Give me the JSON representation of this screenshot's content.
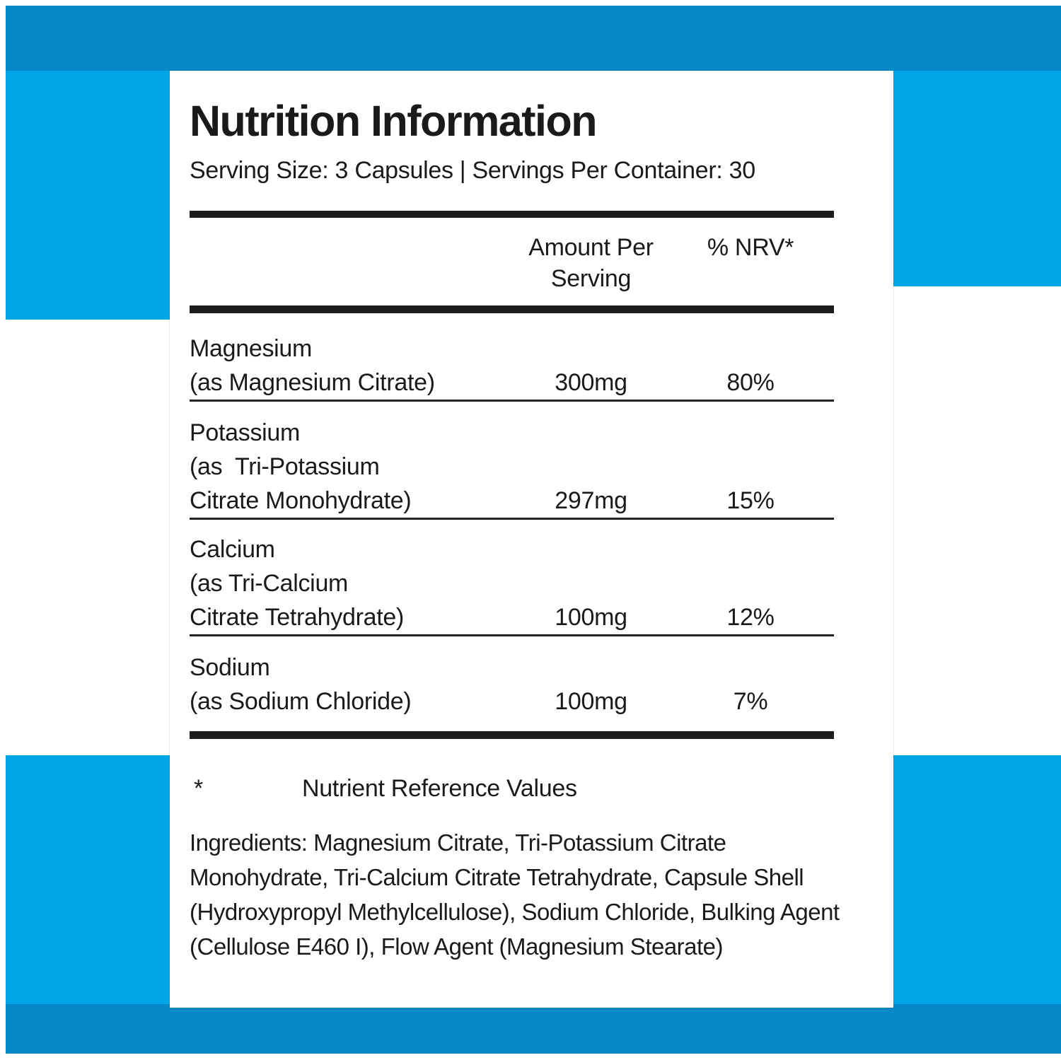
{
  "colors": {
    "top_band": "#0689c6",
    "bottom_band": "#0689c6",
    "side_block": "#00a6e6",
    "panel_bg": "#ffffff",
    "text": "#1a1a1a",
    "rule": "#1d1d1d"
  },
  "label": {
    "title": "Nutrition Information",
    "serving_line": "Serving Size: 3 Capsules  |  Servings Per Container: 30",
    "table": {
      "amount_header": "Amount Per Serving",
      "nrv_header": "% NRV*",
      "rows": [
        {
          "name": "Magnesium",
          "detail_lines": [
            "(as Magnesium Citrate)"
          ],
          "amount": "300mg",
          "nrv": "80%"
        },
        {
          "name": "Potassium",
          "detail_lines": [
            "(as  Tri-Potassium",
            "Citrate Monohydrate)"
          ],
          "amount": "297mg",
          "nrv": "15%"
        },
        {
          "name": "Calcium",
          "detail_lines": [
            "(as Tri-Calcium",
            "Citrate Tetrahydrate)"
          ],
          "amount": "100mg",
          "nrv": "12%"
        },
        {
          "name": "Sodium",
          "detail_lines": [
            "(as Sodium Chloride)"
          ],
          "amount": "100mg",
          "nrv": "7%"
        }
      ]
    },
    "footnote_symbol": "*",
    "footnote_text": "Nutrient Reference Values",
    "ingredients": "Ingredients: Magnesium Citrate, Tri-Potassium Citrate Monohydrate, Tri-Calcium Citrate Tetrahydrate, Capsule Shell (Hydroxypropyl Methylcellulose), Sodium Chloride, Bulking Agent (Cellulose E460 I), Flow Agent (Magnesium Stearate)"
  }
}
